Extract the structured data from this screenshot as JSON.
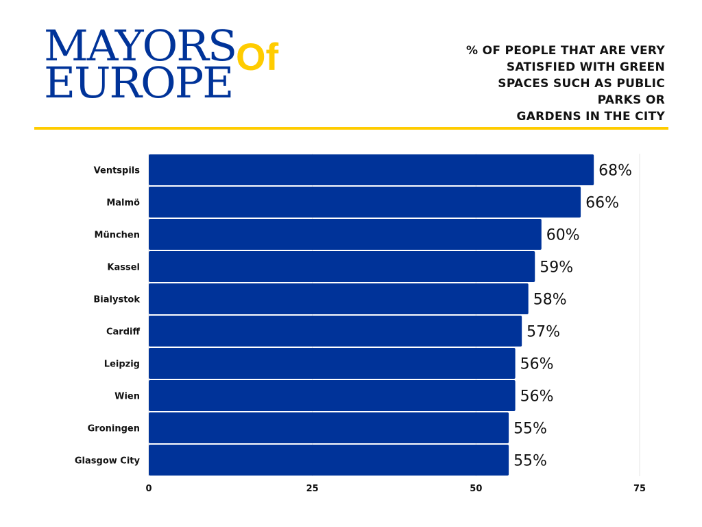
{
  "logo": {
    "line1": "MAYORS",
    "line2": "EUROPE",
    "of": "Of"
  },
  "colors": {
    "bar": "#003399",
    "accent": "#ffcc00"
  },
  "chart_data": {
    "type": "bar",
    "orientation": "horizontal",
    "title": [
      "% OF PEOPLE THAT ARE VERY",
      "SATISFIED WITH GREEN",
      "SPACES SUCH AS PUBLIC",
      "PARKS OR",
      "GARDENS IN THE CITY"
    ],
    "categories": [
      "Ventspils",
      "Malmö",
      "München",
      "Kassel",
      "Bialystok",
      "Cardiff",
      "Leipzig",
      "Wien",
      "Groningen",
      "Glasgow City"
    ],
    "values": [
      68,
      66,
      60,
      59,
      58,
      57,
      56,
      56,
      55,
      55
    ],
    "labels": [
      "68%",
      "66%",
      "60%",
      "59%",
      "58%",
      "57%",
      "56%",
      "56%",
      "55%",
      "55%"
    ],
    "xlim": [
      0,
      75
    ],
    "xticks": [
      0,
      25,
      50,
      75
    ],
    "xtick_labels": [
      "0",
      "25",
      "50",
      "75"
    ],
    "grid": true,
    "xlabel": "",
    "ylabel": ""
  }
}
